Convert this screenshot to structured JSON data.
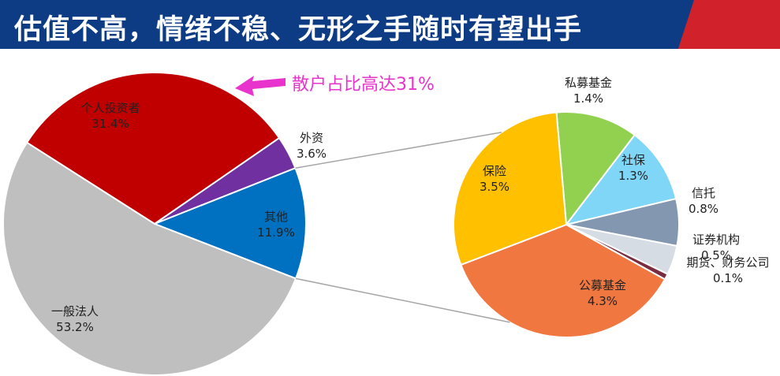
{
  "banner": {
    "title": "估值不高，情绪不稳、无形之手随时有望出手",
    "background_color": "#0d3c84",
    "accent_color": "#d1222b"
  },
  "annotation": {
    "text": "散户占比高达31%",
    "color": "#e833cc"
  },
  "chart_data": [
    {
      "type": "pie",
      "slices": [
        {
          "label": "个人投资者",
          "value": 31.4,
          "value_text": "31.4%",
          "color": "#c00000"
        },
        {
          "label": "外资",
          "value": 3.6,
          "value_text": "3.6%",
          "color": "#7030a0"
        },
        {
          "label": "其他",
          "value": 11.9,
          "value_text": "11.9%",
          "color": "#0070c0"
        },
        {
          "label": "一般法人",
          "value": 53.2,
          "value_text": "53.2%",
          "color": "#bfbfbf"
        }
      ]
    },
    {
      "type": "pie",
      "slices": [
        {
          "label": "私募基金",
          "value": 1.4,
          "value_text": "1.4%",
          "color": "#92d050"
        },
        {
          "label": "社保",
          "value": 1.3,
          "value_text": "1.3%",
          "color": "#7fd6f7"
        },
        {
          "label": "信托",
          "value": 0.8,
          "value_text": "0.8%",
          "color": "#8497b0"
        },
        {
          "label": "证券机构",
          "value": 0.5,
          "value_text": "0.5%",
          "color": "#d6dce4"
        },
        {
          "label": "期货、财务公司",
          "value": 0.1,
          "value_text": "0.1%",
          "color": "#7b2c3f"
        },
        {
          "label": "公募基金",
          "value": 4.3,
          "value_text": "4.3%",
          "color": "#f07840"
        },
        {
          "label": "保险",
          "value": 3.5,
          "value_text": "3.5%",
          "color": "#ffc000"
        }
      ]
    }
  ]
}
